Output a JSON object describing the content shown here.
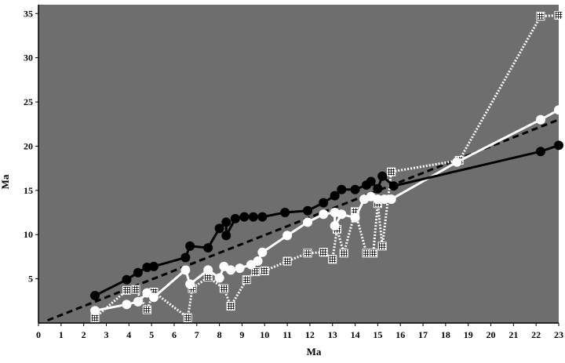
{
  "chart_data": {
    "type": "scatter",
    "xlabel": "Ma",
    "ylabel": "Ma",
    "xlim": [
      0,
      23
    ],
    "ylim": [
      0,
      36
    ],
    "x_ticks": [
      "0",
      "1",
      "2",
      "3",
      "4",
      "5",
      "6",
      "7",
      "8",
      "9",
      "10",
      "11",
      "12",
      "13",
      "14",
      "15",
      "16",
      "17",
      "18",
      "19",
      "20",
      "21",
      "22",
      "23"
    ],
    "y_ticks": [
      "5",
      "10",
      "15",
      "20",
      "25",
      "30",
      "35"
    ],
    "grid": false,
    "background_color": "#6e6e6e",
    "reference_line": {
      "style": "dashed",
      "color": "#000000",
      "points": [
        [
          0.4,
          0.3
        ],
        [
          23,
          23
        ]
      ]
    },
    "series": [
      {
        "style": "black-circle",
        "line_color": "#000000",
        "marker_fill": "#000000",
        "points": [
          [
            2.5,
            3.1
          ],
          [
            3.9,
            4.9
          ],
          [
            4.4,
            5.7
          ],
          [
            4.8,
            6.3
          ],
          [
            5.1,
            6.4
          ],
          [
            6.5,
            7.4
          ],
          [
            6.7,
            8.7
          ],
          [
            7.5,
            8.5
          ],
          [
            8.0,
            10.7
          ],
          [
            8.3,
            11.4
          ],
          [
            8.3,
            9.9
          ],
          [
            8.7,
            11.8
          ],
          [
            9.1,
            12.0
          ],
          [
            9.5,
            12.0
          ],
          [
            9.9,
            12.0
          ],
          [
            10.9,
            12.5
          ],
          [
            11.9,
            12.7
          ],
          [
            12.6,
            13.6
          ],
          [
            13.1,
            14.4
          ],
          [
            13.4,
            15.1
          ],
          [
            14.0,
            15.1
          ],
          [
            14.5,
            15.6
          ],
          [
            14.7,
            16.0
          ],
          [
            15.0,
            15.2
          ],
          [
            15.2,
            16.6
          ],
          [
            15.7,
            15.5
          ],
          [
            22.2,
            19.4
          ],
          [
            23.0,
            20.1
          ]
        ]
      },
      {
        "style": "white-circle",
        "line_color": "#ffffff",
        "marker_fill": "#ffffff",
        "points": [
          [
            2.5,
            1.4
          ],
          [
            3.9,
            2.1
          ],
          [
            4.4,
            2.4
          ],
          [
            4.8,
            3.4
          ],
          [
            5.1,
            2.9
          ],
          [
            6.5,
            6.0
          ],
          [
            6.7,
            4.4
          ],
          [
            7.5,
            6.0
          ],
          [
            8.0,
            5.1
          ],
          [
            8.2,
            6.4
          ],
          [
            8.5,
            6.0
          ],
          [
            8.9,
            6.2
          ],
          [
            9.4,
            6.6
          ],
          [
            9.7,
            7.0
          ],
          [
            9.9,
            8.0
          ],
          [
            11.0,
            9.9
          ],
          [
            11.9,
            11.4
          ],
          [
            12.6,
            12.3
          ],
          [
            13.1,
            12.5
          ],
          [
            13.1,
            11.0
          ],
          [
            13.4,
            12.3
          ],
          [
            14.0,
            11.9
          ],
          [
            14.4,
            14.0
          ],
          [
            14.7,
            14.3
          ],
          [
            15.0,
            14.0
          ],
          [
            15.3,
            14.0
          ],
          [
            15.6,
            14.0
          ],
          [
            18.5,
            18.2
          ],
          [
            22.2,
            23.0
          ],
          [
            23.0,
            24.1
          ]
        ]
      },
      {
        "style": "hatched-square",
        "line_color": "#ffffff",
        "marker_fill": "#ffffff",
        "points": [
          [
            2.5,
            0.6
          ],
          [
            3.9,
            3.7
          ],
          [
            4.3,
            3.8
          ],
          [
            4.8,
            1.5
          ],
          [
            5.1,
            3.5
          ],
          [
            6.6,
            0.6
          ],
          [
            6.8,
            3.9
          ],
          [
            7.5,
            5.2
          ],
          [
            8.2,
            3.9
          ],
          [
            8.5,
            1.9
          ],
          [
            9.2,
            4.9
          ],
          [
            9.6,
            5.8
          ],
          [
            10.0,
            5.9
          ],
          [
            11.0,
            7.0
          ],
          [
            11.9,
            7.9
          ],
          [
            12.6,
            8.0
          ],
          [
            13.0,
            7.2
          ],
          [
            13.2,
            10.6
          ],
          [
            13.5,
            7.9
          ],
          [
            14.0,
            12.6
          ],
          [
            14.5,
            7.9
          ],
          [
            14.8,
            7.9
          ],
          [
            15.0,
            13.5
          ],
          [
            15.2,
            8.7
          ],
          [
            15.6,
            17.1
          ],
          [
            18.6,
            18.4
          ],
          [
            22.2,
            34.7
          ],
          [
            23.0,
            34.8
          ]
        ]
      }
    ]
  }
}
